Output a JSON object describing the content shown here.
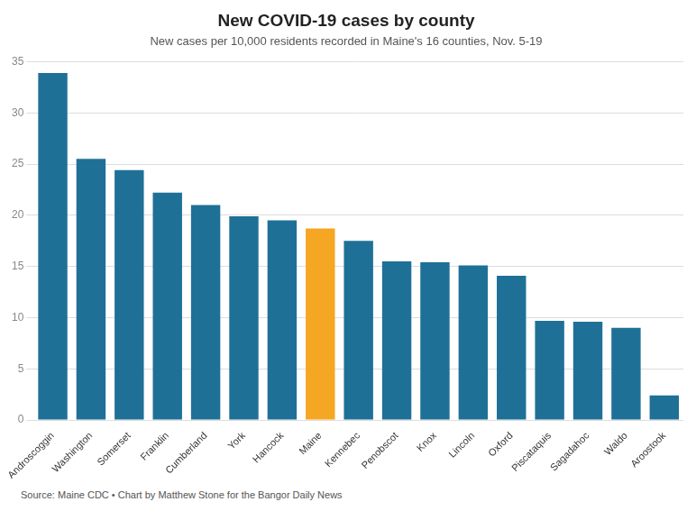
{
  "chart_data": {
    "type": "bar",
    "title": "New COVID-19 cases by county",
    "subtitle": "New cases per 10,000 residents recorded in Maine's 16 counties, Nov. 5-19",
    "source": "Source: Maine CDC • Chart by Matthew Stone for the Bangor Daily News",
    "categories": [
      "Androscoggin",
      "Washington",
      "Somerset",
      "Franklin",
      "Cumberland",
      "York",
      "Hancock",
      "Maine",
      "Kennebec",
      "Penobscot",
      "Knox",
      "Lincoln",
      "Oxford",
      "Piscataquis",
      "Sagadahoc",
      "Waldo",
      "Aroostook"
    ],
    "values": [
      33.9,
      25.5,
      24.4,
      22.2,
      21.0,
      19.9,
      19.5,
      18.7,
      17.5,
      15.5,
      15.4,
      15.1,
      14.1,
      9.7,
      9.6,
      9.0,
      2.4
    ],
    "colors": [
      "#1f7097",
      "#1f7097",
      "#1f7097",
      "#1f7097",
      "#1f7097",
      "#1f7097",
      "#1f7097",
      "#f5a623",
      "#1f7097",
      "#1f7097",
      "#1f7097",
      "#1f7097",
      "#1f7097",
      "#1f7097",
      "#1f7097",
      "#1f7097",
      "#1f7097"
    ],
    "ylim": [
      0,
      35
    ],
    "yticks": [
      0,
      5,
      10,
      15,
      20,
      25,
      30,
      35
    ],
    "grid": true
  }
}
